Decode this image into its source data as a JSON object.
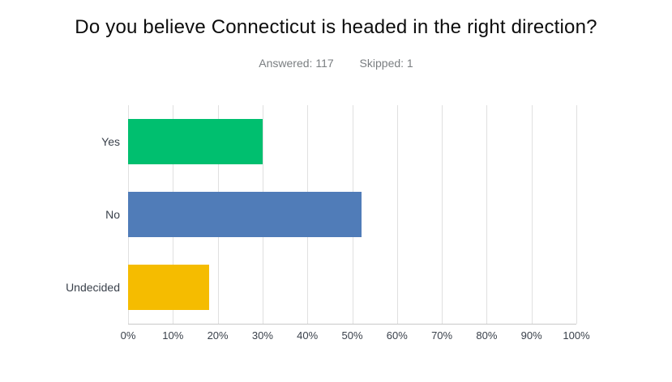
{
  "header": {
    "answered_label": "Answered:",
    "answered_value": "117",
    "skipped_label": "Skipped:",
    "skipped_value": "1"
  },
  "chart_data": {
    "type": "bar",
    "orientation": "horizontal",
    "title": "Do you believe Connecticut is headed in the right direction?",
    "answered": 117,
    "skipped": 1,
    "categories": [
      "Yes",
      "No",
      "Undecided"
    ],
    "values": [
      30,
      52,
      18
    ],
    "bar_colors": [
      "#00bf6f",
      "#507cb8",
      "#f5bc00"
    ],
    "xlabel": "",
    "ylabel": "",
    "xlim": [
      0,
      100
    ],
    "xtick_step": 10,
    "xticks": [
      {
        "value": 0,
        "label": "0%"
      },
      {
        "value": 10,
        "label": "10%"
      },
      {
        "value": 20,
        "label": "20%"
      },
      {
        "value": 30,
        "label": "30%"
      },
      {
        "value": 40,
        "label": "40%"
      },
      {
        "value": 50,
        "label": "50%"
      },
      {
        "value": 60,
        "label": "60%"
      },
      {
        "value": 70,
        "label": "70%"
      },
      {
        "value": 80,
        "label": "80%"
      },
      {
        "value": 90,
        "label": "90%"
      },
      {
        "value": 100,
        "label": "100%"
      }
    ],
    "grid": "vertical",
    "gridline_color": "#e0e0e0",
    "axis_line_color": "#c9c9c9",
    "label_color": "#3a414b",
    "legend": "none"
  }
}
